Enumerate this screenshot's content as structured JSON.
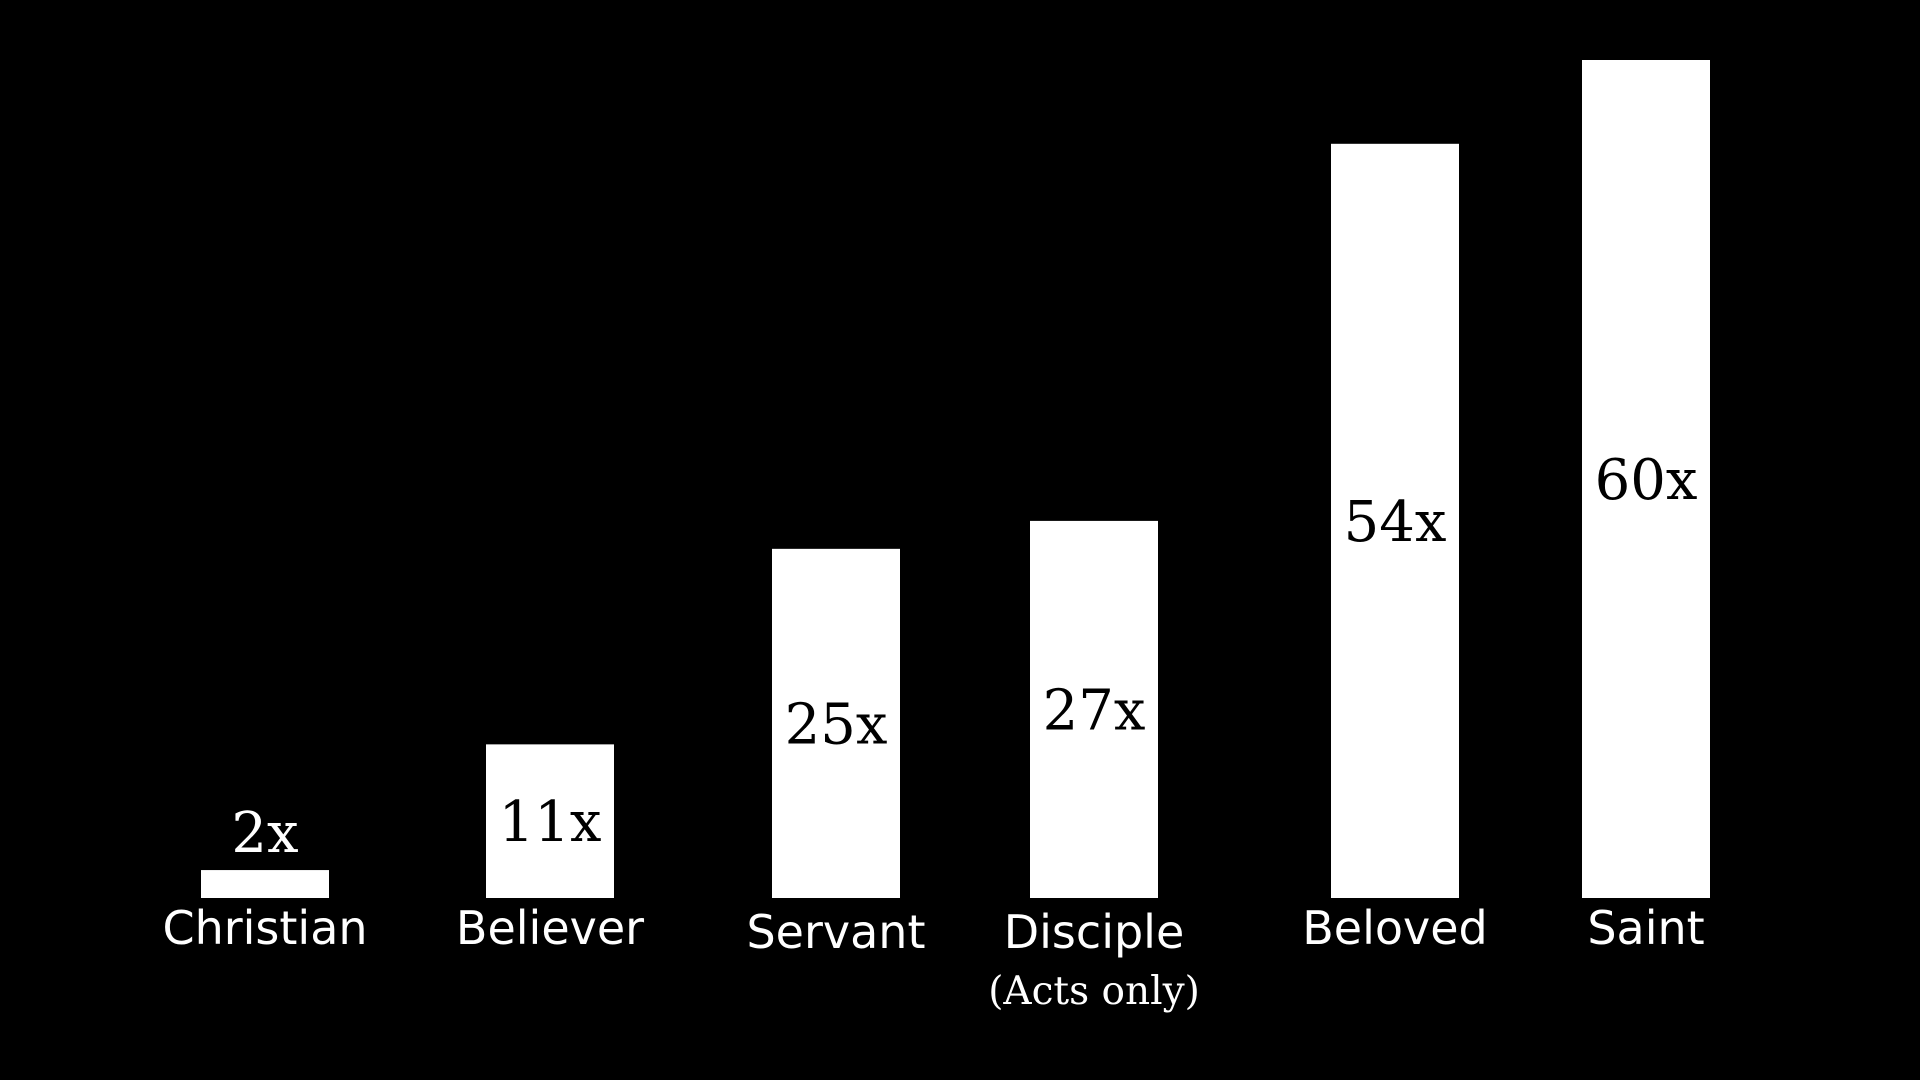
{
  "chart_data": {
    "type": "bar",
    "title": "",
    "xlabel": "",
    "ylabel": "",
    "categories": [
      "Christian",
      "Believer",
      "Servant",
      "Disciple",
      "Beloved",
      "Saint"
    ],
    "values": [
      2,
      11,
      25,
      27,
      54,
      60
    ],
    "value_labels": [
      "2x",
      "11x",
      "25x",
      "27x",
      "54x",
      "60x"
    ],
    "notes": [
      "",
      "",
      "",
      "(Acts only)",
      "",
      ""
    ],
    "ylim": [
      0,
      60
    ],
    "grid": false,
    "legend": "none",
    "colors": {
      "background": "#000000",
      "bar": "#ffffff",
      "text_on_bar": "#000000",
      "text": "#ffffff"
    }
  }
}
